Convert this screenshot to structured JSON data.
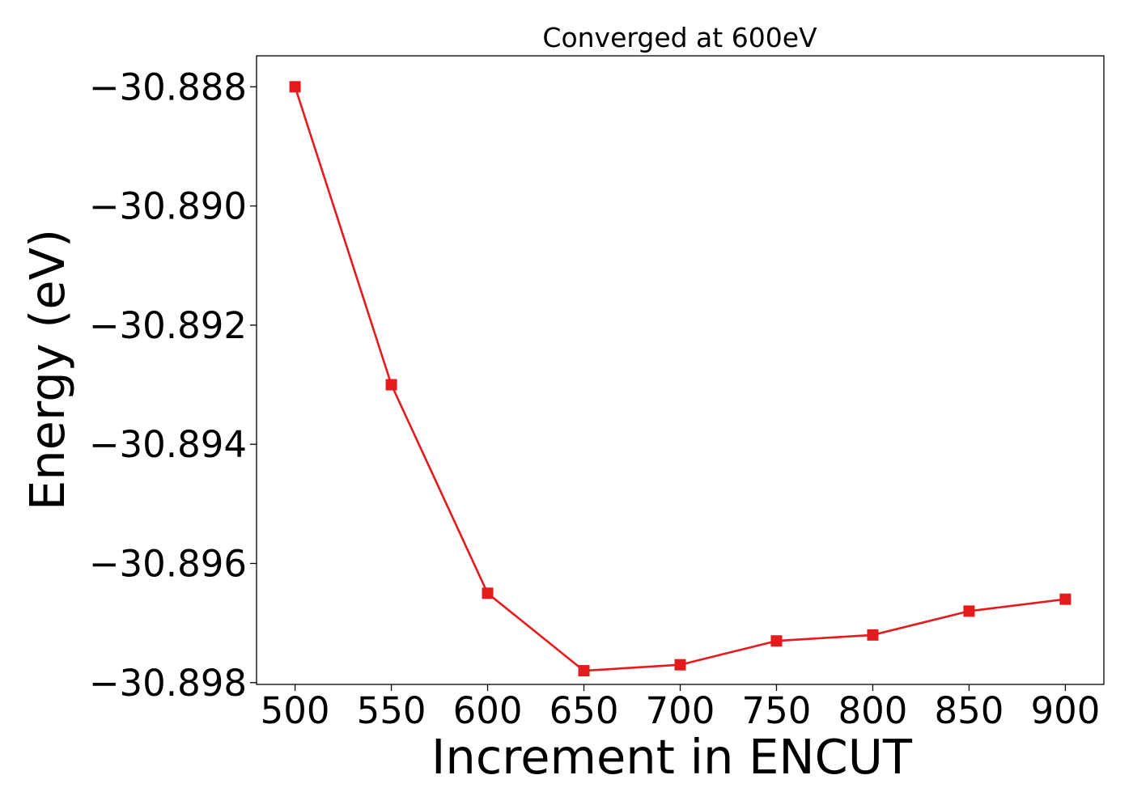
{
  "chart_data": {
    "type": "line",
    "title": "Converged at 600eV",
    "xlabel": "Increment in ENCUT",
    "ylabel": "Energy (eV)",
    "x": [
      500,
      550,
      600,
      650,
      700,
      750,
      800,
      850,
      900
    ],
    "series": [
      {
        "values": [
          -30.888,
          -30.893,
          -30.8965,
          -30.8978,
          -30.8977,
          -30.8973,
          -30.8972,
          -30.8968,
          -30.8966
        ],
        "color": "#e41a1c",
        "marker": "square"
      }
    ],
    "xticks": [
      500,
      550,
      600,
      650,
      700,
      750,
      800,
      850,
      900
    ],
    "xtick_labels": [
      "500",
      "550",
      "600",
      "650",
      "700",
      "750",
      "800",
      "850",
      "900"
    ],
    "yticks": [
      -30.888,
      -30.89,
      -30.892,
      -30.894,
      -30.896,
      -30.898
    ],
    "ytick_labels": [
      "−30.888",
      "−30.890",
      "−30.892",
      "−30.894",
      "−30.896",
      "−30.898"
    ],
    "xlim": [
      480,
      920
    ],
    "ylim": [
      -30.89803,
      -30.88748
    ],
    "grid": false,
    "legend": "none"
  }
}
